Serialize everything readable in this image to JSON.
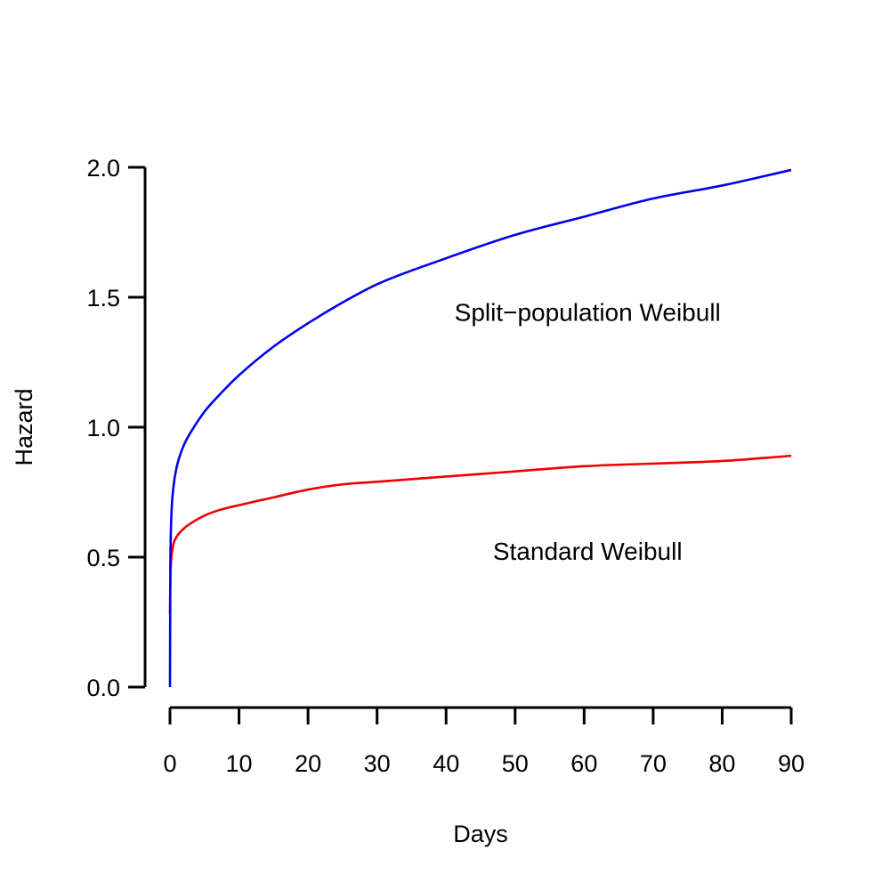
{
  "chart_data": {
    "type": "line",
    "title": "",
    "xlabel": "Days",
    "ylabel": "Hazard",
    "xlim": [
      0,
      90
    ],
    "ylim": [
      0,
      2
    ],
    "xticks": [
      0,
      10,
      20,
      30,
      40,
      50,
      60,
      70,
      80,
      90
    ],
    "yticks": [
      "0.0",
      "0.5",
      "1.0",
      "1.5",
      "2.0"
    ],
    "grid": false,
    "legend": "none",
    "series": [
      {
        "color": "#0000ee",
        "x": [
          0,
          0.05,
          0.1,
          0.2,
          0.5,
          1,
          2,
          3,
          5,
          7,
          10,
          15,
          20,
          25,
          30,
          40,
          50,
          60,
          70,
          80,
          90
        ],
        "y": [
          0,
          0.45,
          0.56,
          0.66,
          0.77,
          0.85,
          0.93,
          0.98,
          1.06,
          1.12,
          1.2,
          1.31,
          1.4,
          1.48,
          1.55,
          1.65,
          1.74,
          1.81,
          1.88,
          1.93,
          1.99
        ]
      },
      {
        "color": "#ee0000",
        "x": [
          0,
          0.05,
          0.1,
          0.2,
          0.5,
          1,
          2,
          3,
          5,
          7,
          10,
          15,
          20,
          25,
          30,
          40,
          50,
          60,
          70,
          80,
          90
        ],
        "y": [
          0.28,
          0.42,
          0.46,
          0.5,
          0.55,
          0.58,
          0.61,
          0.63,
          0.66,
          0.68,
          0.7,
          0.73,
          0.76,
          0.78,
          0.79,
          0.81,
          0.83,
          0.85,
          0.86,
          0.87,
          0.89
        ]
      }
    ],
    "annotations": [
      {
        "text": "Split−population Weibull",
        "x": 60.5,
        "y": 1.41,
        "color": "#000000"
      },
      {
        "text": "Standard Weibull",
        "x": 60.5,
        "y": 0.49,
        "color": "#000000"
      }
    ]
  }
}
